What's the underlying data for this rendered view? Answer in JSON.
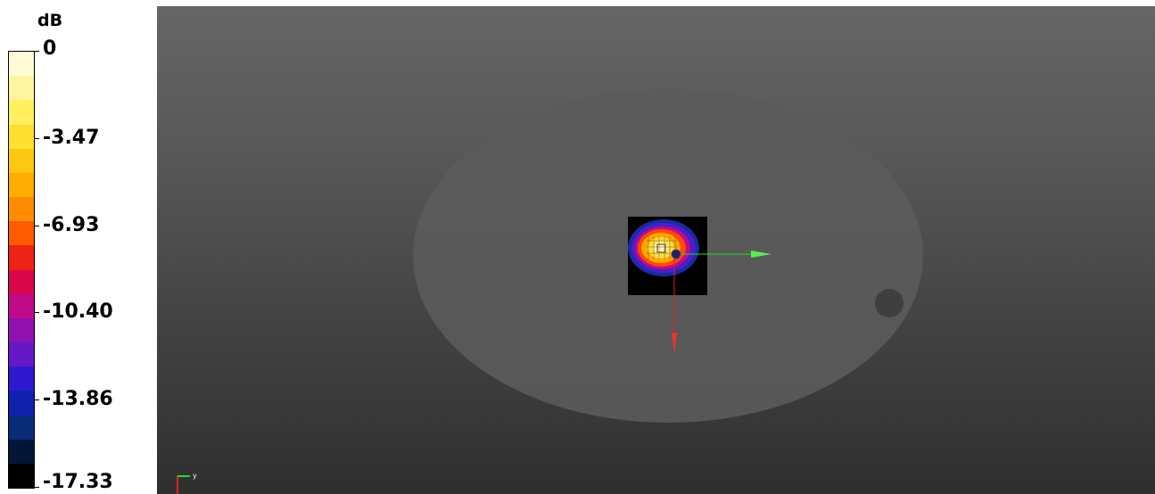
{
  "legend": {
    "unit": "dB",
    "ticks": [
      {
        "label": "0",
        "value": 0
      },
      {
        "label": "-3.47",
        "value": -3.47
      },
      {
        "label": "-6.93",
        "value": -6.93
      },
      {
        "label": "-10.40",
        "value": -10.4
      },
      {
        "label": "-13.86",
        "value": -13.86
      },
      {
        "label": "-17.33",
        "value": -17.33
      }
    ],
    "swatches": [
      "#fffbd6",
      "#fff5a0",
      "#fff060",
      "#ffe030",
      "#ffc810",
      "#ffad00",
      "#ff8c00",
      "#ff5a00",
      "#ee2215",
      "#d8084a",
      "#c00a8c",
      "#9010b0",
      "#6518c8",
      "#3018d0",
      "#1020b0",
      "#0a2a7a",
      "#041638",
      "#000000"
    ]
  },
  "viewport": {
    "background_top": "#666666",
    "background_bottom": "#2f2f2f",
    "phantom_color": "#5b5b5b",
    "hole_color": "#3f3f3f",
    "y_axis_color": "#22dd22",
    "z_axis_color": "#dd2222",
    "triad_label": "y"
  }
}
